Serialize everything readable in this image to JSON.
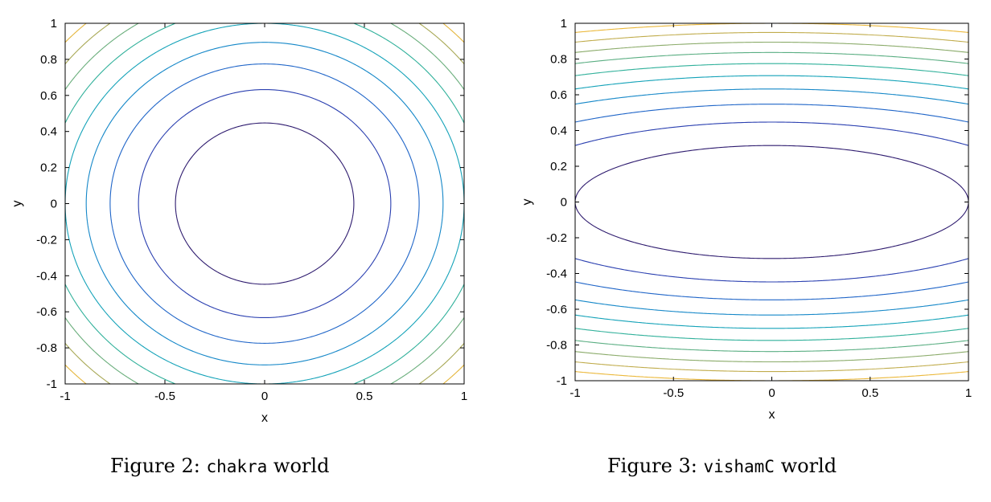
{
  "figures": [
    {
      "caption": {
        "prefix": "Figure 2: ",
        "code": "chakra",
        "suffix": " world"
      }
    },
    {
      "caption": {
        "prefix": "Figure 3: ",
        "code": "vishamC",
        "suffix": " world"
      }
    }
  ],
  "chart_data": [
    {
      "type": "contour",
      "title": "",
      "xlabel": "x",
      "ylabel": "y",
      "xlim": [
        -1,
        1
      ],
      "ylim": [
        -1,
        1
      ],
      "xticks": [
        "-1",
        "-0.5",
        "0",
        "0.5",
        "1"
      ],
      "yticks": [
        "-1",
        "-0.8",
        "-0.6",
        "-0.4",
        "-0.2",
        "0",
        "0.2",
        "0.4",
        "0.6",
        "0.8",
        "1"
      ],
      "function": "x^2 + y^2",
      "levels": [
        0.2,
        0.4,
        0.6,
        0.8,
        1.0,
        1.2,
        1.4,
        1.6,
        1.8
      ],
      "colors": [
        "#2d1a6e",
        "#2a3fb0",
        "#1f65c8",
        "#1487c8",
        "#13a2b8",
        "#2fb09a",
        "#6aae7c",
        "#a9a957",
        "#e4b53a"
      ],
      "grid": false
    },
    {
      "type": "contour",
      "title": "",
      "xlabel": "x",
      "ylabel": "y",
      "xlim": [
        -1,
        1
      ],
      "ylim": [
        -1,
        1
      ],
      "xticks": [
        "-1",
        "-0.5",
        "0",
        "0.5",
        "1"
      ],
      "yticks": [
        "-1",
        "-0.8",
        "-0.6",
        "-0.4",
        "-0.2",
        "0",
        "0.2",
        "0.4",
        "0.6",
        "0.8",
        "1"
      ],
      "function": "0.1 x^2 + y^2",
      "levels": [
        0.1,
        0.2,
        0.3,
        0.4,
        0.5,
        0.6,
        0.7,
        0.8,
        0.9,
        1.0
      ],
      "colors": [
        "#2d1a6e",
        "#2a3fb0",
        "#1f65c8",
        "#1487c8",
        "#13a2b8",
        "#2fb09a",
        "#5aae82",
        "#8bab6a",
        "#c0ac4c",
        "#ebb83a"
      ],
      "grid": false
    }
  ]
}
